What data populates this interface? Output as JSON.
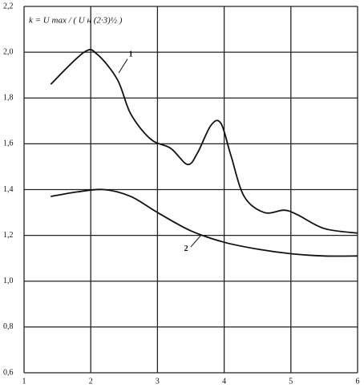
{
  "chart_data": {
    "type": "line",
    "annotation": "k = U max / ( U н (2·3)½ )",
    "series": [
      {
        "name": "1",
        "color": "#111111",
        "x": [
          1.4,
          1.9,
          2.1,
          2.4,
          2.6,
          2.9,
          3.2,
          3.45,
          3.6,
          3.8,
          3.95,
          4.1,
          4.3,
          4.6,
          4.9,
          5.1,
          5.5,
          6.0
        ],
        "values": [
          1.86,
          2.0,
          1.99,
          1.88,
          1.73,
          1.62,
          1.58,
          1.51,
          1.56,
          1.68,
          1.69,
          1.55,
          1.37,
          1.3,
          1.31,
          1.29,
          1.23,
          1.21
        ]
      },
      {
        "name": "2",
        "color": "#111111",
        "x": [
          1.4,
          1.8,
          2.2,
          2.6,
          3.0,
          3.5,
          4.0,
          4.5,
          5.0,
          5.5,
          6.0
        ],
        "values": [
          1.37,
          1.39,
          1.4,
          1.37,
          1.3,
          1.22,
          1.17,
          1.14,
          1.12,
          1.11,
          1.11
        ]
      }
    ],
    "xlim": [
      1,
      6
    ],
    "xticks": [
      1,
      2,
      3,
      4,
      5,
      6
    ],
    "ylim": [
      0.6,
      2.2
    ],
    "yticks": [
      {
        "value": 0.6,
        "label": "0,6"
      },
      {
        "value": 0.8,
        "label": "0,8"
      },
      {
        "value": 1.0,
        "label": "1,0"
      },
      {
        "value": 1.2,
        "label": "1,2"
      },
      {
        "value": 1.4,
        "label": "1,4"
      },
      {
        "value": 1.6,
        "label": "1,6"
      },
      {
        "value": 1.8,
        "label": "1,8"
      },
      {
        "value": 2.0,
        "label": "2,0"
      },
      {
        "value": 2.2,
        "label": "2,2"
      }
    ],
    "grid": true
  }
}
